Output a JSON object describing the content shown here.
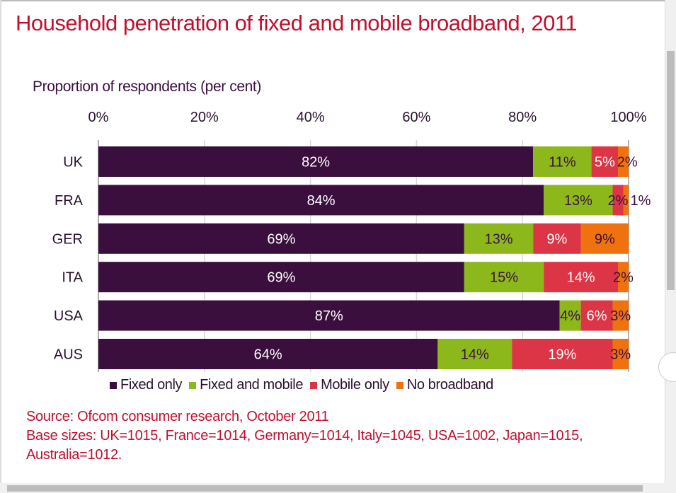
{
  "title": "Household penetration of fixed and mobile broadband, 2011",
  "chart_data": {
    "type": "bar",
    "orientation": "horizontal",
    "stacked": true,
    "title": "Household penetration of fixed and mobile broadband, 2011",
    "subtitle": "Proportion of respondents (per cent)",
    "categories": [
      "UK",
      "FRA",
      "GER",
      "ITA",
      "USA",
      "AUS"
    ],
    "series": [
      {
        "name": "Fixed only",
        "color": "#3b0f3d",
        "label_color": "#ffffff",
        "values": [
          82,
          84,
          69,
          69,
          87,
          64
        ]
      },
      {
        "name": "Fixed and mobile",
        "color": "#8cb81c",
        "label_color": "#3b1040",
        "values": [
          11,
          13,
          13,
          15,
          4,
          14
        ]
      },
      {
        "name": "Mobile only",
        "color": "#dc3545",
        "label_color": "#ffffff",
        "values": [
          5,
          2,
          9,
          14,
          6,
          19
        ]
      },
      {
        "name": "No broadband",
        "color": "#f0720e",
        "label_color": "#3b1040",
        "values": [
          2,
          1,
          9,
          2,
          3,
          3
        ]
      }
    ],
    "xlim": [
      0,
      100
    ],
    "x_ticks": [
      "0%",
      "20%",
      "40%",
      "60%",
      "80%",
      "100%"
    ],
    "x_axis_position": "top",
    "grid": true,
    "legend": "bottom"
  },
  "source": {
    "line1": "Source: Ofcom consumer research, October 2011",
    "line2": "Base sizes: UK=1015, France=1014, Germany=1014, Italy=1045, USA=1002, Japan=1015, Australia=1012."
  }
}
